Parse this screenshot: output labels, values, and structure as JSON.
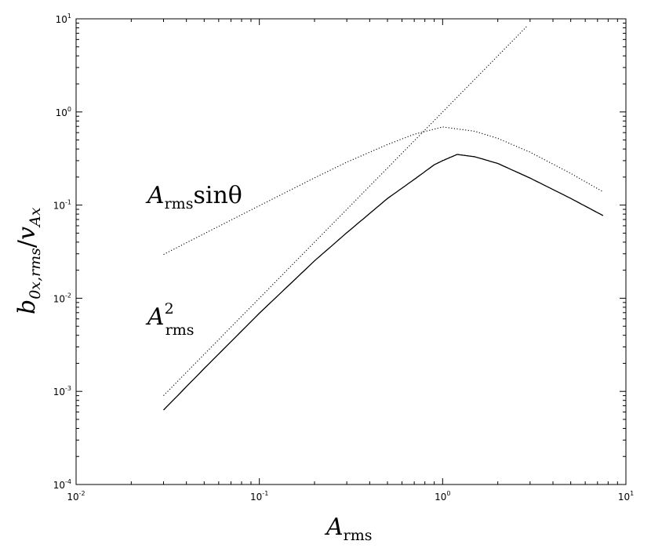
{
  "chart_data": {
    "type": "line",
    "x_scale": "log",
    "y_scale": "log",
    "xlim": [
      0.01,
      10
    ],
    "ylim": [
      0.0001,
      10
    ],
    "x_ticks": [
      {
        "value": 0.01,
        "base": "10",
        "exp": "-2"
      },
      {
        "value": 0.1,
        "base": "10",
        "exp": "-1"
      },
      {
        "value": 1,
        "base": "10",
        "exp": "0"
      },
      {
        "value": 10,
        "base": "10",
        "exp": "1"
      }
    ],
    "y_ticks": [
      {
        "value": 0.0001,
        "base": "10",
        "exp": "-4"
      },
      {
        "value": 0.001,
        "base": "10",
        "exp": "-3"
      },
      {
        "value": 0.01,
        "base": "10",
        "exp": "-2"
      },
      {
        "value": 0.1,
        "base": "10",
        "exp": "-1"
      },
      {
        "value": 1,
        "base": "10",
        "exp": "0"
      },
      {
        "value": 10,
        "base": "10",
        "exp": "1"
      }
    ],
    "xlabel": {
      "main": "A",
      "sub": "rms"
    },
    "ylabel": {
      "main": "b",
      "sub1": "0x,rms",
      "slash": "/",
      "main2": "v",
      "sub2": "Ax"
    },
    "grid": false,
    "series": [
      {
        "style": "solid",
        "x": [
          0.03,
          0.05,
          0.1,
          0.2,
          0.3,
          0.5,
          0.7,
          0.9,
          1.0,
          1.2,
          1.5,
          2.0,
          3.0,
          5.0,
          7.5
        ],
        "y": [
          0.00063,
          0.00176,
          0.0069,
          0.0252,
          0.0505,
          0.1177,
          0.1887,
          0.271,
          0.3,
          0.35,
          0.33,
          0.28,
          0.195,
          0.118,
          0.0772
        ]
      },
      {
        "style": "dotted",
        "x": [
          0.03,
          0.05,
          0.1,
          0.2,
          0.3,
          0.5,
          0.7,
          1.0,
          1.5,
          2.0,
          3.0,
          5.0,
          7.5
        ],
        "y": [
          0.0295,
          0.0493,
          0.0985,
          0.196,
          0.289,
          0.447,
          0.576,
          0.69,
          0.62,
          0.52,
          0.37,
          0.219,
          0.139
        ]
      },
      {
        "style": "dotted",
        "x": [
          0.03,
          0.1,
          0.3,
          1.0,
          3.2
        ],
        "y": [
          0.0009,
          0.01,
          0.09,
          1.0,
          10.24
        ]
      }
    ],
    "annotations": [
      {
        "main": "A",
        "sub": "rms",
        "text": "sinθ",
        "x": 0.0245,
        "y": 0.105
      },
      {
        "main": "A",
        "sub": "rms",
        "sup": "2",
        "x": 0.0245,
        "y": 0.0052
      }
    ]
  }
}
